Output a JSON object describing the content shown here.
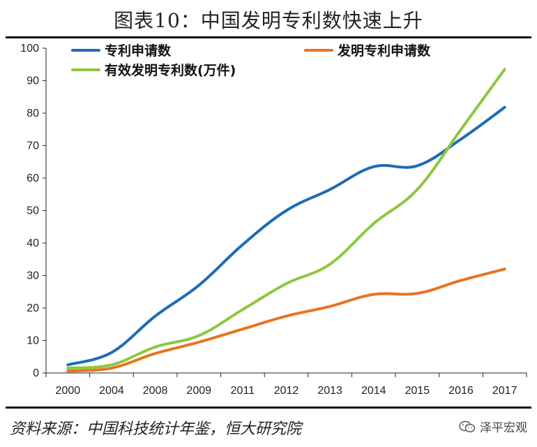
{
  "title": "图表10：中国发明专利数快速上升",
  "source": "资料来源：中国科技统计年鉴，恒大研究院",
  "watermark": {
    "text": "泽平宏观",
    "icon": "wechat-icon"
  },
  "chart_data": {
    "type": "line",
    "categories": [
      "2000",
      "2004",
      "2008",
      "2009",
      "2011",
      "2012",
      "2013",
      "2014",
      "2015",
      "2016",
      "2017"
    ],
    "ylim": [
      0,
      100
    ],
    "yticks": [
      0,
      10,
      20,
      30,
      40,
      50,
      60,
      70,
      80,
      90,
      100
    ],
    "grid": false,
    "legend_position": "top-left",
    "series": [
      {
        "name": "专利申请数",
        "color": "#1f6bb5",
        "values": [
          2.5,
          6.3,
          17.5,
          27.0,
          39.5,
          50.0,
          56.5,
          63.5,
          63.8,
          72.0,
          81.8
        ]
      },
      {
        "name": "发明专利申请数",
        "color": "#e8731f",
        "values": [
          0.6,
          1.5,
          6.0,
          9.5,
          13.5,
          17.5,
          20.5,
          24.2,
          24.5,
          28.5,
          32.0
        ]
      },
      {
        "name": "有效发明专利数(万件)",
        "color": "#8dc63f",
        "values": [
          1.5,
          2.5,
          8.0,
          11.5,
          19.5,
          27.5,
          33.5,
          46.0,
          56.5,
          75.0,
          93.5
        ]
      }
    ]
  }
}
